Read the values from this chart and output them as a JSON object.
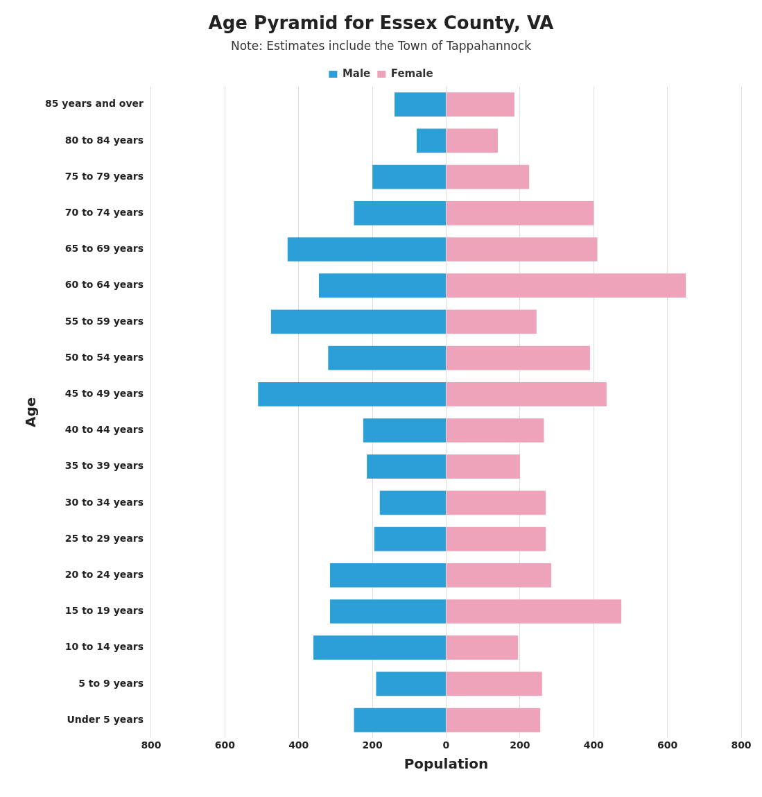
{
  "chart_data": {
    "type": "bar",
    "orientation": "horizontal",
    "stacked": true,
    "title": "Age Pyramid for Essex County, VA",
    "subtitle": "Note: Estimates include the Town of Tappahannock",
    "xlabel": "Population",
    "ylabel": "Age",
    "categories": [
      "85 years and over",
      "80 to 84 years",
      "75 to 79 years",
      "70 to 74 years",
      "65 to 69 years",
      "60 to 64 years",
      "55 to 59 years",
      "50 to 54 years",
      "45 to 49 years",
      "40 to 44 years",
      "35 to 39 years",
      "30 to 34 years",
      "25 to 29 years",
      "20 to 24 years",
      "15 to 19 years",
      "10 to 14 years",
      "5 to 9 years",
      "Under 5 years"
    ],
    "series": [
      {
        "name": "Male",
        "color": "#2c9fd6",
        "values": [
          -140,
          -80,
          -200,
          -250,
          -430,
          -345,
          -475,
          -320,
          -510,
          -225,
          -215,
          -180,
          -195,
          -315,
          -315,
          -360,
          -190,
          -250
        ]
      },
      {
        "name": "Female",
        "color": "#eea3ba",
        "values": [
          185,
          140,
          225,
          400,
          410,
          650,
          245,
          390,
          435,
          265,
          200,
          270,
          270,
          285,
          475,
          195,
          260,
          255
        ]
      }
    ],
    "xlim": [
      -800,
      800
    ],
    "xticks": [
      {
        "value": -800,
        "label": "800"
      },
      {
        "value": -600,
        "label": "600"
      },
      {
        "value": -400,
        "label": "400"
      },
      {
        "value": -200,
        "label": "200"
      },
      0,
      200,
      400,
      600,
      800
    ],
    "grid": "x",
    "legend": "top"
  }
}
